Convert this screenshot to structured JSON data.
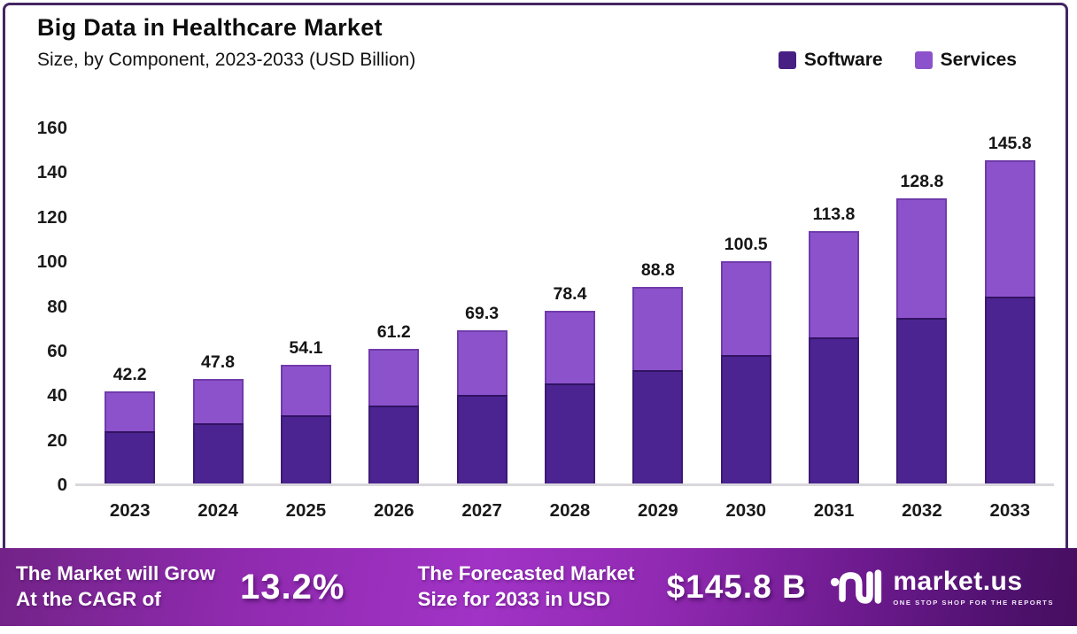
{
  "page": {
    "title": "Big Data in Healthcare Market",
    "subtitle": "Size, by Component, 2023-2033 (USD Billion)"
  },
  "legend": [
    {
      "label": "Software",
      "color": "#482084"
    },
    {
      "label": "Services",
      "color": "#8c52cc"
    }
  ],
  "chart_data": {
    "type": "bar",
    "stacked": true,
    "title": "Big Data in Healthcare Market",
    "subtitle": "Size, by Component, 2023-2033 (USD Billion)",
    "xlabel": "",
    "ylabel": "",
    "ylim": [
      0,
      160
    ],
    "yticks": [
      160,
      140,
      120,
      100,
      80,
      60,
      40,
      20,
      0
    ],
    "grid": false,
    "legend_position": "top-right",
    "categories": [
      "2023",
      "2024",
      "2025",
      "2026",
      "2027",
      "2028",
      "2029",
      "2030",
      "2031",
      "2032",
      "2033"
    ],
    "series": [
      {
        "name": "Software",
        "color": "#4b2491",
        "values": [
          24.1,
          27.7,
          31.3,
          35.6,
          40.4,
          45.8,
          51.6,
          58.5,
          66.4,
          74.9,
          84.7
        ]
      },
      {
        "name": "Services",
        "color": "#8c52cc",
        "values": [
          18.1,
          20.1,
          22.8,
          25.6,
          28.9,
          32.6,
          37.2,
          42.0,
          47.4,
          53.9,
          61.1
        ]
      }
    ],
    "totals": [
      42.2,
      47.8,
      54.1,
      61.2,
      69.3,
      78.4,
      88.8,
      100.5,
      113.8,
      128.8,
      145.8
    ]
  },
  "banner": {
    "cagr_label_line1": "The Market will Grow",
    "cagr_label_line2": "At the CAGR of",
    "cagr_value": "13.2%",
    "forecast_label_line1": "The Forecasted Market",
    "forecast_label_line2": "Size for 2033 in USD",
    "forecast_value": "$145.8 B",
    "logo_text": "market.us",
    "logo_tagline": "ONE STOP SHOP FOR THE REPORTS"
  }
}
